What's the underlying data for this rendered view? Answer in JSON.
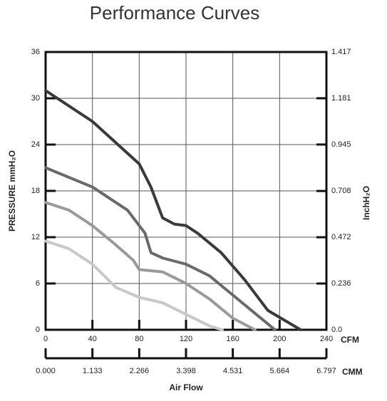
{
  "chart_data": {
    "type": "line",
    "title": "Performance Curves",
    "ylabel": "PRESSURE mmH₂O",
    "y2label": "InchH₂O",
    "xunit": "CFM",
    "x2unit": "CMM",
    "xlabel": "Air Flow",
    "xlim": [
      0,
      240
    ],
    "xticks": [
      0,
      40,
      80,
      120,
      160,
      200,
      240
    ],
    "x2lim": [
      0,
      6.797
    ],
    "x2ticks": [
      {
        "value": 0,
        "label": "0.000"
      },
      1.133,
      2.266,
      3.398,
      4.531,
      5.664,
      6.797
    ],
    "ylim": [
      0,
      36
    ],
    "yticks": [
      0,
      6,
      12,
      18,
      24,
      30,
      36
    ],
    "y2lim": [
      0,
      1.417
    ],
    "y2ticks": [
      {
        "value": 0,
        "label": "0.0"
      },
      0.236,
      0.472,
      0.708,
      0.945,
      1.181,
      1.417
    ],
    "grid": true,
    "series": [
      {
        "color": "#3a3a3a",
        "x": [
          0,
          40,
          80,
          90,
          100,
          110,
          120,
          130,
          150,
          170,
          190,
          218
        ],
        "values": [
          31,
          27,
          21.5,
          18.5,
          14.5,
          13.7,
          13.5,
          12.5,
          10,
          6.5,
          2.5,
          0
        ]
      },
      {
        "color": "#6a6a6a",
        "x": [
          0,
          40,
          70,
          85,
          90,
          100,
          120,
          140,
          160,
          180,
          196
        ],
        "values": [
          21,
          18.5,
          15.5,
          12.5,
          10,
          9.3,
          8.5,
          7,
          4.5,
          2,
          0
        ]
      },
      {
        "color": "#9a9a9a",
        "x": [
          0,
          20,
          40,
          60,
          75,
          80,
          100,
          120,
          140,
          160,
          179
        ],
        "values": [
          16.5,
          15.5,
          13.5,
          11,
          9,
          7.8,
          7.5,
          6,
          4,
          1.5,
          0
        ]
      },
      {
        "color": "#c8c8c8",
        "x": [
          0,
          20,
          40,
          60,
          80,
          100,
          120,
          140,
          151
        ],
        "values": [
          11.5,
          10.5,
          8.5,
          5.5,
          4.2,
          3.5,
          2,
          0.5,
          0
        ]
      }
    ]
  }
}
